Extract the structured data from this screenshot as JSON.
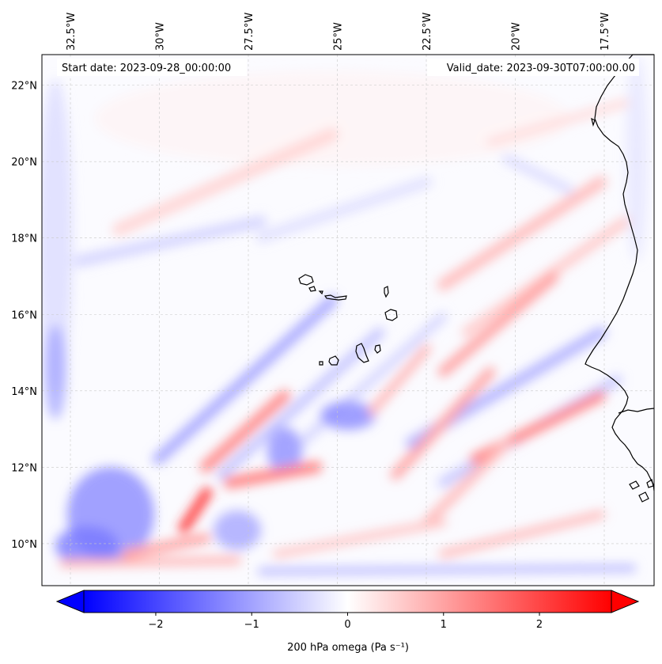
{
  "map": {
    "projection": "PlateCarree",
    "lon_range": [
      -33.3,
      -16.1
    ],
    "lat_range": [
      8.9,
      22.8
    ],
    "gridlines": true,
    "coastlines": true,
    "start_label": "Start date: 2023-09-28_00:00:00",
    "valid_label": "Valid_date: 2023-09-30T07:00:00.00",
    "lon_ticks": [
      {
        "value": -32.5,
        "label": "32.5°W"
      },
      {
        "value": -30.0,
        "label": "30°W"
      },
      {
        "value": -27.5,
        "label": "27.5°W"
      },
      {
        "value": -25.0,
        "label": "25°W"
      },
      {
        "value": -22.5,
        "label": "22.5°W"
      },
      {
        "value": -20.0,
        "label": "20°W"
      },
      {
        "value": -17.5,
        "label": "17.5°W"
      }
    ],
    "lat_ticks": [
      {
        "value": 22,
        "label": "22°N"
      },
      {
        "value": 20,
        "label": "20°N"
      },
      {
        "value": 18,
        "label": "18°N"
      },
      {
        "value": 16,
        "label": "16°N"
      },
      {
        "value": 14,
        "label": "14°N"
      },
      {
        "value": 12,
        "label": "12°N"
      },
      {
        "value": 10,
        "label": "10°N"
      }
    ]
  },
  "colorbar": {
    "colormap": "bwr",
    "range": [
      -2.75,
      2.75
    ],
    "extend": "both",
    "label": "200 hPa omega (Pa s⁻¹)",
    "ticks": [
      {
        "value": -2,
        "label": "−2"
      },
      {
        "value": -1,
        "label": "−1"
      },
      {
        "value": 0,
        "label": "0"
      },
      {
        "value": 1,
        "label": "1"
      },
      {
        "value": 2,
        "label": "2"
      }
    ]
  },
  "colors": {
    "min": "#0000ff",
    "mid": "#ffffff",
    "max": "#ff0000",
    "coast": "#000000",
    "grid": "#c8c8c8"
  }
}
